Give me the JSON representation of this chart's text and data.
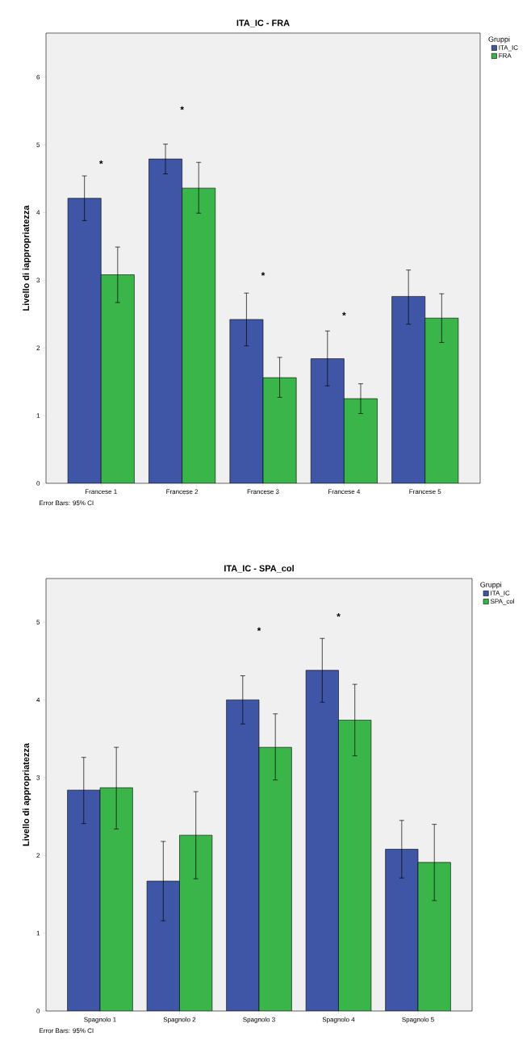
{
  "chart_data": [
    {
      "type": "bar",
      "title": "ITA_IC - FRA",
      "ylabel": "Livello di iappropriatezza",
      "legend_title": "Gruppi",
      "legend": "right",
      "categories": [
        "Francese 1",
        "Francese 2",
        "Francese 3",
        "Francese 4",
        "Francese 5"
      ],
      "series": [
        {
          "name": "ITA_IC",
          "color": "#3f56a6",
          "values": [
            4.21,
            4.79,
            2.42,
            1.84,
            2.76
          ],
          "errors": [
            [
              3.88,
              4.54
            ],
            [
              4.57,
              5.01
            ],
            [
              2.03,
              2.81
            ],
            [
              1.44,
              2.25
            ],
            [
              2.35,
              3.15
            ]
          ]
        },
        {
          "name": "FRA",
          "color": "#3ab54a",
          "values": [
            3.08,
            4.36,
            1.56,
            1.25,
            2.44
          ],
          "errors": [
            [
              2.67,
              3.49
            ],
            [
              3.99,
              4.74
            ],
            [
              1.27,
              1.86
            ],
            [
              1.03,
              1.47
            ],
            [
              2.08,
              2.8
            ]
          ]
        }
      ],
      "ylim": [
        0,
        6.65
      ],
      "yticks": [
        0,
        1,
        2,
        3,
        4,
        5,
        6
      ],
      "annotations": [
        "*",
        "*",
        "*",
        "*",
        "Error Bars: 95% CI"
      ]
    },
    {
      "type": "bar",
      "title": "ITA_IC - SPA_col",
      "ylabel": "Livello di appropriatezza",
      "legend_title": "Gruppi",
      "legend": "right",
      "categories": [
        "Spagnolo 1",
        "Spagnolo 2",
        "Spagnolo 3",
        "Spagnolo 4",
        "Spagnolo 5"
      ],
      "series": [
        {
          "name": "ITA_IC",
          "color": "#3f56a6",
          "values": [
            2.84,
            1.67,
            4.0,
            4.38,
            2.08
          ],
          "errors": [
            [
              2.41,
              3.26
            ],
            [
              1.16,
              2.18
            ],
            [
              3.69,
              4.31
            ],
            [
              3.97,
              4.79
            ],
            [
              1.71,
              2.45
            ]
          ]
        },
        {
          "name": "SPA_col",
          "color": "#3ab54a",
          "values": [
            2.87,
            2.26,
            3.39,
            3.74,
            1.91
          ],
          "errors": [
            [
              2.34,
              3.39
            ],
            [
              1.7,
              2.82
            ],
            [
              2.97,
              3.82
            ],
            [
              3.28,
              4.2
            ],
            [
              1.42,
              2.4
            ]
          ]
        }
      ],
      "ylim": [
        0,
        5.56
      ],
      "yticks": [
        0,
        1,
        2,
        3,
        4,
        5
      ],
      "annotations": [
        "*",
        "*",
        "Error Bars: 95% CI"
      ]
    }
  ]
}
